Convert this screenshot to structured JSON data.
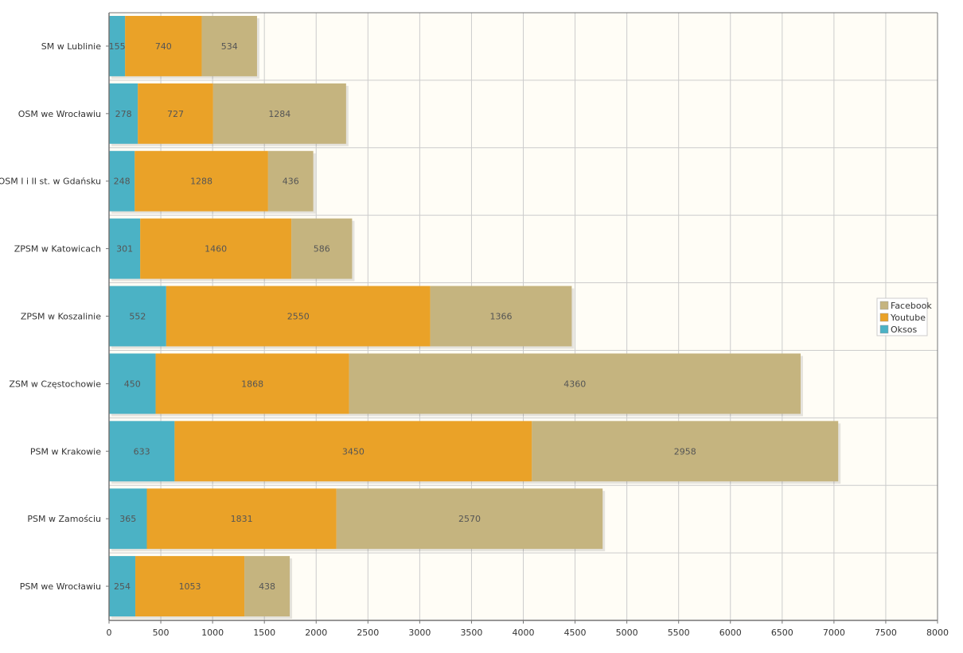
{
  "chart_data": {
    "type": "bar",
    "orientation": "horizontal",
    "stacked": true,
    "title": "",
    "xlabel": "",
    "ylabel": "",
    "xlim": [
      0,
      8000
    ],
    "x_ticks": [
      0,
      500,
      1000,
      1500,
      2000,
      2500,
      3000,
      3500,
      4000,
      4500,
      5000,
      5500,
      6000,
      6500,
      7000,
      7500,
      8000
    ],
    "grid": true,
    "legend_position": "right",
    "categories": [
      "SM w Lublinie",
      "OSM we Wrocławiu",
      "OSM I i II st. w Gdańsku",
      "ZPSM w Katowicach",
      "ZPSM w Koszalinie",
      "ZSM w Częstochowie",
      "PSM w Krakowie",
      "PSM w Zamościu",
      "PSM we Wrocławiu"
    ],
    "series": [
      {
        "name": "Oksos",
        "color": "#4bb2c5",
        "values": [
          155,
          278,
          248,
          301,
          552,
          450,
          633,
          365,
          254
        ]
      },
      {
        "name": "Youtube",
        "color": "#eaa228",
        "values": [
          740,
          727,
          1288,
          1460,
          2550,
          1868,
          3450,
          1831,
          1053
        ]
      },
      {
        "name": "Facebook",
        "color": "#c5b47f",
        "values": [
          534,
          1284,
          436,
          586,
          1366,
          4360,
          2958,
          2570,
          438
        ]
      }
    ],
    "legend_order": [
      "Facebook",
      "Youtube",
      "Oksos"
    ],
    "colors": {
      "plot_background": "#fffdf6",
      "grid": "#cccccc",
      "axis": "#757575"
    }
  }
}
